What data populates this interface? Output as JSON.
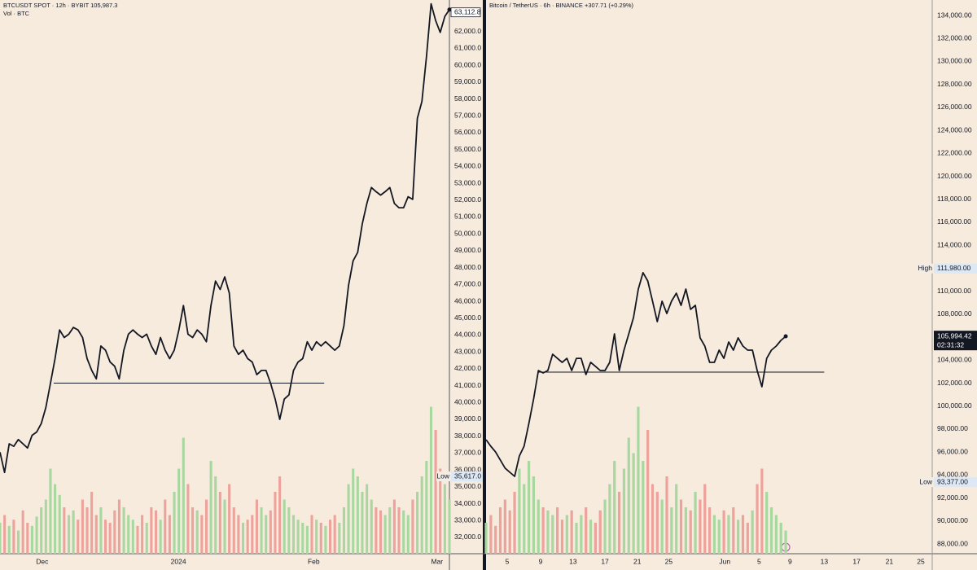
{
  "chart_data": [
    {
      "type": "line",
      "title": "BTCUSDT SPOT · 12h · BYBIT  105,987.3",
      "subtitle": "Vol · BTC",
      "color": "#131722",
      "values": [
        37050,
        35850,
        37550,
        37400,
        37800,
        37550,
        37300,
        38050,
        38250,
        38750,
        39700,
        41150,
        42600,
        44300,
        43850,
        44050,
        44450,
        44300,
        43850,
        42600,
        41900,
        41400,
        43350,
        43100,
        42400,
        42150,
        41400,
        43100,
        44050,
        44300,
        44050,
        43850,
        44050,
        43350,
        42850,
        43850,
        43100,
        42600,
        43100,
        44300,
        45750,
        44050,
        43850,
        44300,
        44050,
        43600,
        45750,
        47200,
        46700,
        47450,
        46500,
        43350,
        42850,
        43100,
        42600,
        42400,
        41650,
        41900,
        41900,
        41150,
        40200,
        39000,
        40200,
        40450,
        41900,
        42400,
        42600,
        43600,
        43100,
        43600,
        43350,
        43600,
        43350,
        43100,
        43350,
        44550,
        46950,
        48400,
        48900,
        50600,
        51800,
        52750,
        52500,
        52300,
        52500,
        52750,
        51800,
        51550,
        51550,
        52200,
        52050,
        56850,
        57850,
        60500,
        63650,
        62650,
        61950,
        62900,
        63300
      ],
      "volume": {
        "ylim": [
          0,
          100
        ],
        "up_color": "#a8d8a0",
        "down_color": "#eda39b",
        "values": [
          20,
          25,
          18,
          22,
          15,
          28,
          20,
          18,
          24,
          30,
          35,
          55,
          45,
          38,
          30,
          25,
          28,
          22,
          35,
          30,
          40,
          25,
          30,
          22,
          20,
          28,
          35,
          30,
          25,
          22,
          18,
          25,
          20,
          30,
          28,
          22,
          35,
          25,
          40,
          55,
          75,
          45,
          30,
          28,
          25,
          35,
          60,
          50,
          40,
          35,
          45,
          30,
          25,
          20,
          22,
          25,
          35,
          30,
          25,
          28,
          40,
          50,
          35,
          30,
          25,
          22,
          20,
          18,
          25,
          22,
          20,
          18,
          22,
          25,
          20,
          30,
          45,
          55,
          50,
          40,
          45,
          35,
          30,
          28,
          25,
          30,
          35,
          30,
          28,
          25,
          35,
          40,
          50,
          60,
          95,
          80,
          55,
          45,
          35
        ]
      },
      "xlim": [
        0,
        98
      ],
      "xticks": [
        {
          "value": 9.2,
          "label": "Dec"
        },
        {
          "value": 38.9,
          "label": "2024"
        },
        {
          "value": 68.4,
          "label": "Feb"
        },
        {
          "value": 95.3,
          "label": "Mar"
        }
      ],
      "ylim": [
        31030,
        63870
      ],
      "yticks": [
        {
          "value": 32000,
          "label": "32,000.0"
        },
        {
          "value": 33000,
          "label": "33,000.0"
        },
        {
          "value": 34000,
          "label": "34,000.0"
        },
        {
          "value": 35000,
          "label": "35,000.0"
        },
        {
          "value": 36000,
          "label": "36,000.0"
        },
        {
          "value": 37000,
          "label": "37,000.0"
        },
        {
          "value": 38000,
          "label": "38,000.0"
        },
        {
          "value": 39000,
          "label": "39,000.0"
        },
        {
          "value": 40000,
          "label": "40,000.0"
        },
        {
          "value": 41000,
          "label": "41,000.0"
        },
        {
          "value": 42000,
          "label": "42,000.0"
        },
        {
          "value": 43000,
          "label": "43,000.0"
        },
        {
          "value": 44000,
          "label": "44,000.0"
        },
        {
          "value": 45000,
          "label": "45,000.0"
        },
        {
          "value": 46000,
          "label": "46,000.0"
        },
        {
          "value": 47000,
          "label": "47,000.0"
        },
        {
          "value": 48000,
          "label": "48,000.0"
        },
        {
          "value": 49000,
          "label": "49,000.0"
        },
        {
          "value": 50000,
          "label": "50,000.0"
        },
        {
          "value": 51000,
          "label": "51,000.0"
        },
        {
          "value": 52000,
          "label": "52,000.0"
        },
        {
          "value": 53000,
          "label": "53,000.0"
        },
        {
          "value": 54000,
          "label": "54,000.0"
        },
        {
          "value": 55000,
          "label": "55,000.0"
        },
        {
          "value": 56000,
          "label": "56,000.0"
        },
        {
          "value": 57000,
          "label": "57,000.0"
        },
        {
          "value": 58000,
          "label": "58,000.0"
        },
        {
          "value": 59000,
          "label": "59,000.0"
        },
        {
          "value": 60000,
          "label": "60,000.0"
        },
        {
          "value": 61000,
          "label": "61,000.0"
        },
        {
          "value": 62000,
          "label": "62,000.0"
        }
      ],
      "hlines": [
        {
          "value": 41150,
          "x": [
            11.7,
            70.7
          ]
        }
      ],
      "markers": [
        {
          "name": "Low",
          "value": 35617.0,
          "value_label": "35,617.0"
        }
      ],
      "last_price": {
        "value": 63112.8,
        "value_label": "63,112.8"
      }
    },
    {
      "type": "line",
      "title": "Bitcoin / TetherUS · 6h · BINANCE  +307.71 (+0.29%)",
      "color": "#131722",
      "values": [
        97080,
        96510,
        96010,
        95310,
        94600,
        94240,
        93890,
        95660,
        96510,
        98500,
        100620,
        103100,
        102890,
        103100,
        104520,
        104160,
        103810,
        104160,
        103100,
        104160,
        104160,
        102750,
        103810,
        103460,
        103100,
        103100,
        103810,
        106290,
        103100,
        104870,
        106290,
        107710,
        110190,
        111610,
        110900,
        109130,
        107350,
        109130,
        108060,
        109130,
        109830,
        108770,
        110190,
        108420,
        108770,
        105940,
        105230,
        103810,
        103810,
        104870,
        104160,
        105580,
        104870,
        105940,
        105230,
        104870,
        104870,
        103100,
        101680,
        104160,
        104870,
        105230,
        105720,
        106080
      ],
      "volume": {
        "ylim": [
          0,
          100
        ],
        "up_color": "#a8d8a0",
        "down_color": "#eda39b",
        "values": [
          20,
          25,
          18,
          30,
          35,
          28,
          40,
          55,
          45,
          60,
          50,
          35,
          30,
          28,
          25,
          30,
          22,
          25,
          28,
          20,
          25,
          30,
          22,
          20,
          28,
          35,
          45,
          60,
          40,
          55,
          75,
          65,
          95,
          60,
          80,
          45,
          40,
          35,
          50,
          30,
          45,
          35,
          30,
          28,
          40,
          35,
          45,
          30,
          25,
          22,
          28,
          25,
          30,
          22,
          25,
          20,
          28,
          45,
          55,
          40,
          30,
          25,
          20,
          15
        ]
      },
      "xlim": [
        0,
        93.8
      ],
      "xticks": [
        {
          "value": 4.45,
          "label": "5"
        },
        {
          "value": 11.47,
          "label": "9"
        },
        {
          "value": 18.3,
          "label": "13"
        },
        {
          "value": 25.0,
          "label": "17"
        },
        {
          "value": 31.8,
          "label": "21"
        },
        {
          "value": 38.4,
          "label": "25"
        },
        {
          "value": 50.2,
          "label": "Jun"
        },
        {
          "value": 57.4,
          "label": "5"
        },
        {
          "value": 63.9,
          "label": "9"
        },
        {
          "value": 71.1,
          "label": "13"
        },
        {
          "value": 77.9,
          "label": "17"
        },
        {
          "value": 84.8,
          "label": "21"
        },
        {
          "value": 91.4,
          "label": "25"
        }
      ],
      "ylim": [
        87155,
        135347
      ],
      "yticks": [
        {
          "value": 88000,
          "label": "88,000.00"
        },
        {
          "value": 90000,
          "label": "90,000.00"
        },
        {
          "value": 92000,
          "label": "92,000.00"
        },
        {
          "value": 94000,
          "label": "94,000.00"
        },
        {
          "value": 96000,
          "label": "96,000.00"
        },
        {
          "value": 98000,
          "label": "98,000.00"
        },
        {
          "value": 100000,
          "label": "100,000.00"
        },
        {
          "value": 102000,
          "label": "102,000.00"
        },
        {
          "value": 104000,
          "label": "104,000.00"
        },
        {
          "value": 108000,
          "label": "108,000.00"
        },
        {
          "value": 110000,
          "label": "110,000.00"
        },
        {
          "value": 114000,
          "label": "114,000.00"
        },
        {
          "value": 116000,
          "label": "116,000.00"
        },
        {
          "value": 118000,
          "label": "118,000.00"
        },
        {
          "value": 120000,
          "label": "120,000.00"
        },
        {
          "value": 122000,
          "label": "122,000.00"
        },
        {
          "value": 124000,
          "label": "124,000.00"
        },
        {
          "value": 126000,
          "label": "126,000.00"
        },
        {
          "value": 128000,
          "label": "128,000.00"
        },
        {
          "value": 130000,
          "label": "130,000.00"
        },
        {
          "value": 132000,
          "label": "132,000.00"
        },
        {
          "value": 134000,
          "label": "134,000.00"
        }
      ],
      "hlines": [
        {
          "value": 102960,
          "x": [
            10.8,
            71.1
          ]
        }
      ],
      "markers": [
        {
          "name": "High",
          "value": 111980.0,
          "value_label": "111,980.00"
        },
        {
          "name": "Low",
          "value": 93377.0,
          "value_label": "93,377.00"
        }
      ],
      "last_price": {
        "value": 105994.42,
        "value_label": "105,994.42",
        "countdown": "02:31:32"
      }
    }
  ]
}
